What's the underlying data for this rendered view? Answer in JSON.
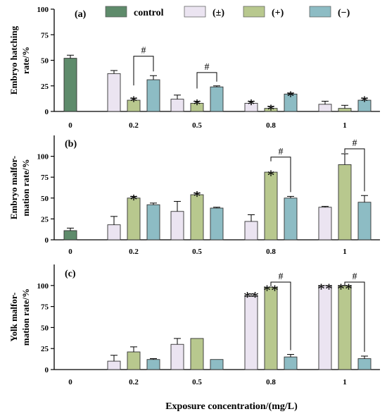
{
  "chart_data": {
    "type": "bar",
    "categories": [
      "0",
      "0.2",
      "0.5",
      "0.8",
      "1"
    ],
    "xlabel": "Exposure  concentration/(mg/L)",
    "legend": {
      "placement": "top",
      "entries": [
        {
          "name": "control",
          "color": "#5e8b6b"
        },
        {
          "name": "(±)",
          "color": "#ebe4f1"
        },
        {
          "name": "(+)",
          "color": "#b8c88e"
        },
        {
          "name": "(−)",
          "color": "#8dbcc4"
        }
      ]
    },
    "panels": [
      {
        "label": "(a)",
        "ylabel_lines": [
          "Embryo hatching",
          "rate/%"
        ],
        "ylim": [
          0,
          100
        ],
        "yticks": [
          0,
          25,
          50,
          75,
          100
        ],
        "bars": [
          {
            "category": "0",
            "series": "control",
            "value": 52,
            "err": 3,
            "sig": ""
          },
          {
            "category": "0.2",
            "series": "(±)",
            "value": 37,
            "err": 3,
            "sig": ""
          },
          {
            "category": "0.2",
            "series": "(+)",
            "value": 11,
            "err": 2,
            "sig": "*"
          },
          {
            "category": "0.2",
            "series": "(−)",
            "value": 31,
            "err": 4,
            "sig": ""
          },
          {
            "category": "0.5",
            "series": "(±)",
            "value": 12,
            "err": 4,
            "sig": ""
          },
          {
            "category": "0.5",
            "series": "(+)",
            "value": 8,
            "err": 2,
            "sig": "*"
          },
          {
            "category": "0.5",
            "series": "(−)",
            "value": 24,
            "err": 1,
            "sig": ""
          },
          {
            "category": "0.8",
            "series": "(±)",
            "value": 8,
            "err": 2,
            "sig": "*"
          },
          {
            "category": "0.8",
            "series": "(+)",
            "value": 3,
            "err": 2,
            "sig": "*"
          },
          {
            "category": "0.8",
            "series": "(−)",
            "value": 17,
            "err": 1,
            "sig": "*"
          },
          {
            "category": "1",
            "series": "(±)",
            "value": 7,
            "err": 3,
            "sig": ""
          },
          {
            "category": "1",
            "series": "(+)",
            "value": 3,
            "err": 3,
            "sig": ""
          },
          {
            "category": "1",
            "series": "(−)",
            "value": 11,
            "err": 2,
            "sig": "*"
          }
        ],
        "brackets": [
          {
            "category": "0.2",
            "from": "(+)",
            "to": "(−)",
            "text": "#",
            "at": 54
          },
          {
            "category": "0.5",
            "from": "(+)",
            "to": "(−)",
            "text": "#",
            "at": 38
          }
        ]
      },
      {
        "label": "(b)",
        "ylabel_lines": [
          "Embryo malfor-",
          "mation rate/%"
        ],
        "ylim": [
          0,
          125
        ],
        "yticks": [
          0,
          25,
          50,
          75,
          100
        ],
        "bars": [
          {
            "category": "0",
            "series": "control",
            "value": 11,
            "err": 3,
            "sig": ""
          },
          {
            "category": "0.2",
            "series": "(±)",
            "value": 18,
            "err": 10,
            "sig": ""
          },
          {
            "category": "0.2",
            "series": "(+)",
            "value": 50,
            "err": 2,
            "sig": "*"
          },
          {
            "category": "0.2",
            "series": "(−)",
            "value": 42,
            "err": 2,
            "sig": ""
          },
          {
            "category": "0.5",
            "series": "(±)",
            "value": 34,
            "err": 12,
            "sig": ""
          },
          {
            "category": "0.5",
            "series": "(+)",
            "value": 54,
            "err": 2,
            "sig": "*"
          },
          {
            "category": "0.5",
            "series": "(−)",
            "value": 38,
            "err": 1,
            "sig": ""
          },
          {
            "category": "0.8",
            "series": "(±)",
            "value": 22,
            "err": 8,
            "sig": ""
          },
          {
            "category": "0.8",
            "series": "(+)",
            "value": 81,
            "err": 0,
            "sig": "*"
          },
          {
            "category": "0.8",
            "series": "(−)",
            "value": 50,
            "err": 2,
            "sig": ""
          },
          {
            "category": "1",
            "series": "(±)",
            "value": 39,
            "err": 1,
            "sig": ""
          },
          {
            "category": "1",
            "series": "(+)",
            "value": 90,
            "err": 13,
            "sig": ""
          },
          {
            "category": "1",
            "series": "(−)",
            "value": 45,
            "err": 8,
            "sig": ""
          }
        ],
        "brackets": [
          {
            "category": "0.8",
            "from": "(+)",
            "to": "(−)",
            "text": "#",
            "at": 99
          },
          {
            "category": "1",
            "from": "(+)",
            "to": "(−)",
            "text": "#",
            "at": 109
          }
        ]
      },
      {
        "label": "(c)",
        "ylabel_lines": [
          "Yolk malfor-",
          "mation rate/%"
        ],
        "ylim": [
          0,
          125
        ],
        "yticks": [
          0,
          25,
          50,
          75,
          100
        ],
        "bars": [
          {
            "category": "0.2",
            "series": "(±)",
            "value": 10,
            "err": 7,
            "sig": ""
          },
          {
            "category": "0.2",
            "series": "(+)",
            "value": 21,
            "err": 6,
            "sig": ""
          },
          {
            "category": "0.2",
            "series": "(−)",
            "value": 12,
            "err": 1,
            "sig": ""
          },
          {
            "category": "0.5",
            "series": "(±)",
            "value": 30,
            "err": 7,
            "sig": ""
          },
          {
            "category": "0.5",
            "series": "(+)",
            "value": 37,
            "err": 0,
            "sig": ""
          },
          {
            "category": "0.5",
            "series": "(−)",
            "value": 12,
            "err": 0,
            "sig": ""
          },
          {
            "category": "0.8",
            "series": "(±)",
            "value": 87,
            "err": 3,
            "sig": "**"
          },
          {
            "category": "0.8",
            "series": "(+)",
            "value": 98,
            "err": 0,
            "sig": "**"
          },
          {
            "category": "0.8",
            "series": "(−)",
            "value": 15,
            "err": 3,
            "sig": ""
          },
          {
            "category": "1",
            "series": "(±)",
            "value": 100,
            "err": 0,
            "sig": "**"
          },
          {
            "category": "1",
            "series": "(+)",
            "value": 100,
            "err": 0,
            "sig": "**"
          },
          {
            "category": "1",
            "series": "(−)",
            "value": 13,
            "err": 3,
            "sig": ""
          }
        ],
        "brackets": [
          {
            "category": "0.8",
            "from": "(+)",
            "to": "(−)",
            "text": "#",
            "at": 104
          },
          {
            "category": "1",
            "from": "(+)",
            "to": "(−)",
            "text": "#",
            "at": 104
          }
        ]
      }
    ]
  }
}
